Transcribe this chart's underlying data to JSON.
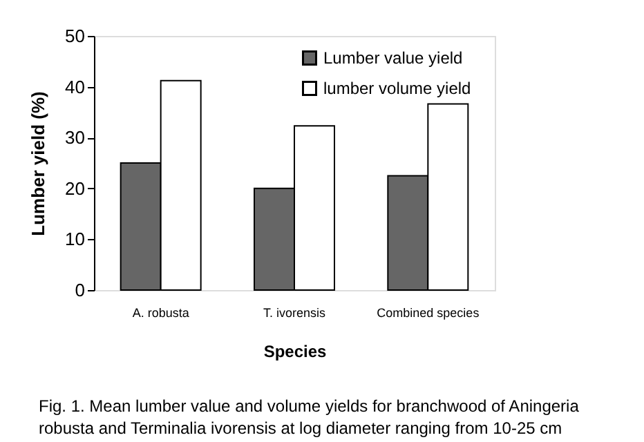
{
  "chart_data": {
    "type": "bar",
    "categories": [
      "A. robusta",
      "T. ivorensis",
      "Combined species"
    ],
    "series": [
      {
        "name": "Lumber value yield",
        "color": "#666666",
        "values": [
          25.0,
          20.0,
          22.5
        ]
      },
      {
        "name": "lumber volume yield",
        "color": "#ffffff",
        "values": [
          41.2,
          32.3,
          36.6
        ]
      }
    ],
    "xlabel": "Species",
    "ylabel": "Lumber yield (%)",
    "ylim": [
      0,
      50
    ],
    "yticks": [
      0,
      10,
      20,
      30,
      40,
      50
    ],
    "grid": false,
    "legend": "top",
    "annotations": [
      "Fig. 1. Mean lumber value and volume yields for branchwood of Aningeria",
      "robusta and Terminalia ivorensis at log diameter ranging from 10-25 cm"
    ]
  }
}
